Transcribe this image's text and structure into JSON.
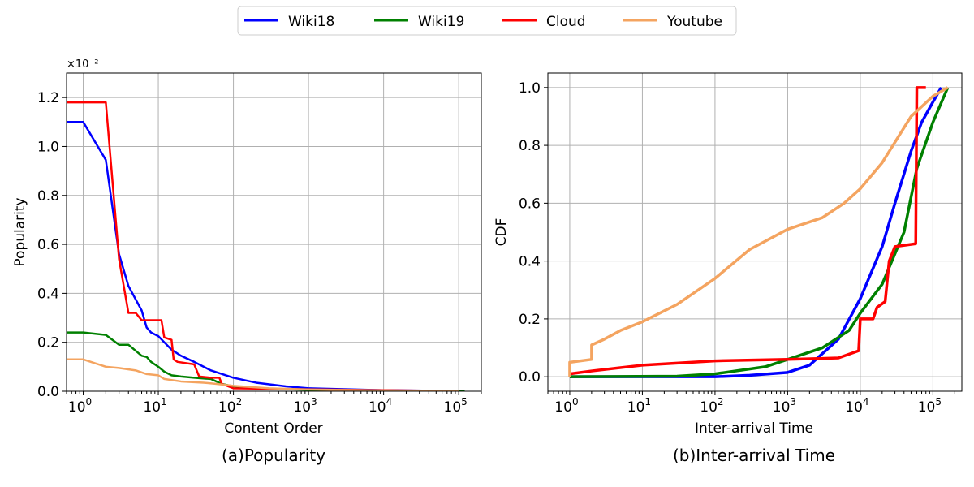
{
  "legend": {
    "items": [
      {
        "name": "Wiki18",
        "color": "#0000ff"
      },
      {
        "name": "Wiki19",
        "color": "#008000"
      },
      {
        "name": "Cloud",
        "color": "#ff0000"
      },
      {
        "name": "Youtube",
        "color": "#f4a460"
      }
    ]
  },
  "chart_data": [
    {
      "type": "line",
      "caption": "(a)Popularity",
      "xlabel": "Content Order",
      "ylabel": "Popularity",
      "x_scale": "log",
      "xlim": [
        0.6,
        200000
      ],
      "ylim": [
        0,
        1.3
      ],
      "y_multiplier_label": "×10⁻²",
      "x_ticks": [
        1,
        10,
        100,
        1000,
        10000,
        100000
      ],
      "x_tick_labels": [
        {
          "base": "10",
          "exp": "0"
        },
        {
          "base": "10",
          "exp": "1"
        },
        {
          "base": "10",
          "exp": "2"
        },
        {
          "base": "10",
          "exp": "3"
        },
        {
          "base": "10",
          "exp": "4"
        },
        {
          "base": "10",
          "exp": "5"
        }
      ],
      "y_ticks": [
        0.0,
        0.2,
        0.4,
        0.6,
        0.8,
        1.0,
        1.2
      ],
      "y_tick_labels": [
        "0.0",
        "0.2",
        "0.4",
        "0.6",
        "0.8",
        "1.0",
        "1.2"
      ],
      "grid": true,
      "series": [
        {
          "name": "Wiki18",
          "color": "#0000ff",
          "points": [
            [
              0.6,
              1.1
            ],
            [
              1,
              1.1
            ],
            [
              2,
              0.945
            ],
            [
              3,
              0.56
            ],
            [
              4,
              0.43
            ],
            [
              6,
              0.33
            ],
            [
              7,
              0.26
            ],
            [
              8,
              0.24
            ],
            [
              10,
              0.225
            ],
            [
              12,
              0.2
            ],
            [
              15,
              0.17
            ],
            [
              20,
              0.145
            ],
            [
              30,
              0.12
            ],
            [
              50,
              0.085
            ],
            [
              100,
              0.055
            ],
            [
              200,
              0.035
            ],
            [
              500,
              0.02
            ],
            [
              1000,
              0.012
            ],
            [
              10000,
              0.004
            ],
            [
              120000,
              0.001
            ]
          ]
        },
        {
          "name": "Wiki19",
          "color": "#008000",
          "points": [
            [
              0.6,
              0.24
            ],
            [
              1,
              0.24
            ],
            [
              2,
              0.23
            ],
            [
              3,
              0.19
            ],
            [
              4,
              0.19
            ],
            [
              6,
              0.145
            ],
            [
              7,
              0.14
            ],
            [
              8,
              0.12
            ],
            [
              10,
              0.1
            ],
            [
              12,
              0.08
            ],
            [
              15,
              0.065
            ],
            [
              20,
              0.06
            ],
            [
              30,
              0.055
            ],
            [
              50,
              0.05
            ],
            [
              70,
              0.03
            ],
            [
              100,
              0.02
            ],
            [
              300,
              0.01
            ],
            [
              1000,
              0.006
            ],
            [
              10000,
              0.003
            ],
            [
              120000,
              0.001
            ]
          ]
        },
        {
          "name": "Cloud",
          "color": "#ff0000",
          "points": [
            [
              0.6,
              1.18
            ],
            [
              2,
              1.18
            ],
            [
              3,
              0.54
            ],
            [
              4,
              0.32
            ],
            [
              5,
              0.32
            ],
            [
              6,
              0.29
            ],
            [
              11,
              0.29
            ],
            [
              12,
              0.22
            ],
            [
              15,
              0.21
            ],
            [
              16,
              0.13
            ],
            [
              18,
              0.12
            ],
            [
              30,
              0.11
            ],
            [
              35,
              0.06
            ],
            [
              50,
              0.055
            ],
            [
              65,
              0.055
            ],
            [
              70,
              0.03
            ],
            [
              100,
              0.012
            ],
            [
              1000,
              0.008
            ],
            [
              10000,
              0.004
            ],
            [
              100000,
              0.001
            ]
          ]
        },
        {
          "name": "Youtube",
          "color": "#f4a460",
          "points": [
            [
              0.6,
              0.13
            ],
            [
              1,
              0.13
            ],
            [
              2,
              0.1
            ],
            [
              3,
              0.095
            ],
            [
              5,
              0.085
            ],
            [
              7,
              0.07
            ],
            [
              10,
              0.065
            ],
            [
              12,
              0.05
            ],
            [
              20,
              0.04
            ],
            [
              40,
              0.035
            ],
            [
              60,
              0.03
            ],
            [
              100,
              0.022
            ],
            [
              300,
              0.012
            ],
            [
              1000,
              0.007
            ],
            [
              10000,
              0.003
            ],
            [
              100000,
              0.001
            ]
          ]
        }
      ]
    },
    {
      "type": "line",
      "caption": "(b)Inter-arrival Time",
      "xlabel": "Inter-arrival Time",
      "ylabel": "CDF",
      "x_scale": "log",
      "xlim": [
        0.5,
        250000
      ],
      "ylim": [
        -0.05,
        1.05
      ],
      "x_ticks": [
        1,
        10,
        100,
        1000,
        10000,
        100000
      ],
      "x_tick_labels": [
        {
          "base": "10",
          "exp": "0"
        },
        {
          "base": "10",
          "exp": "1"
        },
        {
          "base": "10",
          "exp": "2"
        },
        {
          "base": "10",
          "exp": "3"
        },
        {
          "base": "10",
          "exp": "4"
        },
        {
          "base": "10",
          "exp": "5"
        }
      ],
      "y_ticks": [
        0.0,
        0.2,
        0.4,
        0.6,
        0.8,
        1.0
      ],
      "y_tick_labels": [
        "0.0",
        "0.2",
        "0.4",
        "0.6",
        "0.8",
        "1.0"
      ],
      "grid": true,
      "series": [
        {
          "name": "Wiki18",
          "color": "#0000ff",
          "points": [
            [
              1,
              0
            ],
            [
              100,
              0
            ],
            [
              300,
              0.005
            ],
            [
              1000,
              0.015
            ],
            [
              2000,
              0.04
            ],
            [
              5000,
              0.13
            ],
            [
              10000,
              0.27
            ],
            [
              20000,
              0.45
            ],
            [
              30000,
              0.6
            ],
            [
              50000,
              0.78
            ],
            [
              70000,
              0.88
            ],
            [
              100000,
              0.95
            ],
            [
              130000,
              1.0
            ]
          ]
        },
        {
          "name": "Wiki19",
          "color": "#008000",
          "points": [
            [
              1,
              0
            ],
            [
              30,
              0.002
            ],
            [
              100,
              0.01
            ],
            [
              500,
              0.035
            ],
            [
              1000,
              0.06
            ],
            [
              3000,
              0.1
            ],
            [
              7000,
              0.16
            ],
            [
              10000,
              0.22
            ],
            [
              20000,
              0.32
            ],
            [
              40000,
              0.5
            ],
            [
              60000,
              0.72
            ],
            [
              100000,
              0.88
            ],
            [
              160000,
              1.0
            ]
          ]
        },
        {
          "name": "Cloud",
          "color": "#ff0000",
          "points": [
            [
              1,
              0.01
            ],
            [
              2,
              0.02
            ],
            [
              10,
              0.04
            ],
            [
              100,
              0.055
            ],
            [
              1000,
              0.06
            ],
            [
              5000,
              0.065
            ],
            [
              9500,
              0.09
            ],
            [
              10000,
              0.2
            ],
            [
              15000,
              0.2
            ],
            [
              17000,
              0.24
            ],
            [
              22000,
              0.26
            ],
            [
              25000,
              0.4
            ],
            [
              30000,
              0.45
            ],
            [
              58000,
              0.46
            ],
            [
              60000,
              1.0
            ],
            [
              80000,
              1.0
            ]
          ]
        },
        {
          "name": "Youtube",
          "color": "#f4a460",
          "points": [
            [
              1,
              0
            ],
            [
              1,
              0.05
            ],
            [
              2,
              0.06
            ],
            [
              2,
              0.11
            ],
            [
              3,
              0.13
            ],
            [
              5,
              0.16
            ],
            [
              10,
              0.19
            ],
            [
              30,
              0.25
            ],
            [
              100,
              0.34
            ],
            [
              300,
              0.44
            ],
            [
              1000,
              0.51
            ],
            [
              3000,
              0.55
            ],
            [
              6000,
              0.6
            ],
            [
              10000,
              0.65
            ],
            [
              20000,
              0.74
            ],
            [
              50000,
              0.9
            ],
            [
              100000,
              0.97
            ],
            [
              160000,
              1.0
            ]
          ]
        }
      ]
    }
  ]
}
